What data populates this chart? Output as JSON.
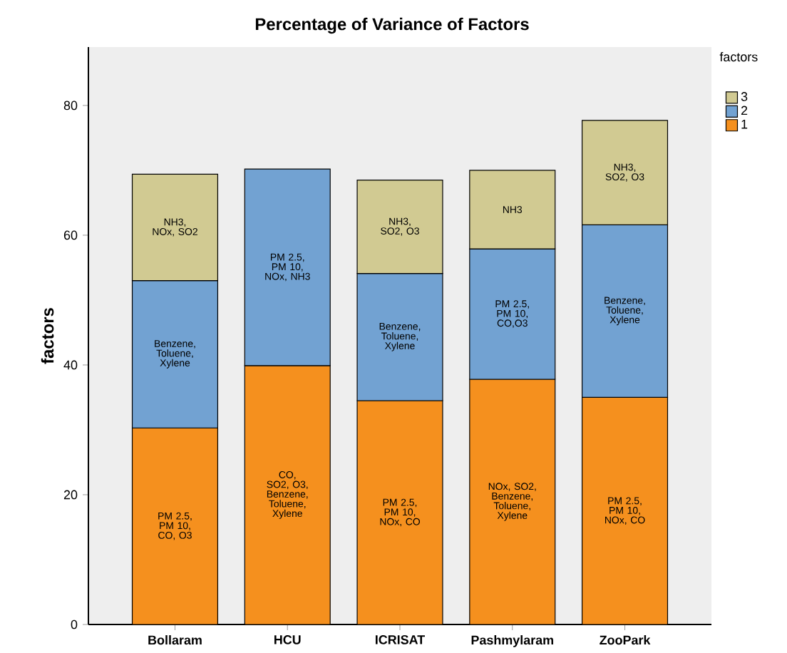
{
  "chart_data": {
    "type": "bar",
    "stacked": true,
    "title": "Percentage of Variance of Factors",
    "ylabel": "factors",
    "legend_title": "factors",
    "legend": "top right",
    "categories": [
      "Bollaram",
      "HCU",
      "ICRISAT",
      "Pashmylaram",
      "ZooPark"
    ],
    "series": [
      {
        "name": "1",
        "color": "#f5901e",
        "values": [
          30.3,
          39.9,
          34.5,
          37.8,
          35.0
        ],
        "value_labels": [
          "PM 2.5, PM 10, CO, O3",
          "CO, SO2, O3, Benzene, Toluene, Xylene",
          "PM 2.5, PM 10, NOx, CO",
          "NOx, SO2, Benzene, Toluene, Xylene",
          "PM 2.5, PM 10, NOx, CO"
        ]
      },
      {
        "name": "2",
        "color": "#72a2d2",
        "values": [
          22.7,
          30.3,
          19.6,
          20.1,
          26.6
        ],
        "value_labels": [
          "Benzene, Toluene, Xylene",
          "PM 2.5, PM 10, NOx, NH3",
          "Benzene, Toluene, Xylene",
          "PM 2.5, PM 10, CO,O3",
          "Benzene, Toluene, Xylene"
        ]
      },
      {
        "name": "3",
        "color": "#d1ca92",
        "values": [
          16.4,
          null,
          14.4,
          12.1,
          16.1
        ],
        "value_labels": [
          "NH3, NOx, SO2",
          null,
          "NH3, SO2, O3",
          "NH3",
          "NH3, SO2, O3"
        ]
      }
    ],
    "ylim": [
      0,
      89
    ],
    "yticks": [
      0,
      20,
      40,
      60,
      80
    ]
  }
}
